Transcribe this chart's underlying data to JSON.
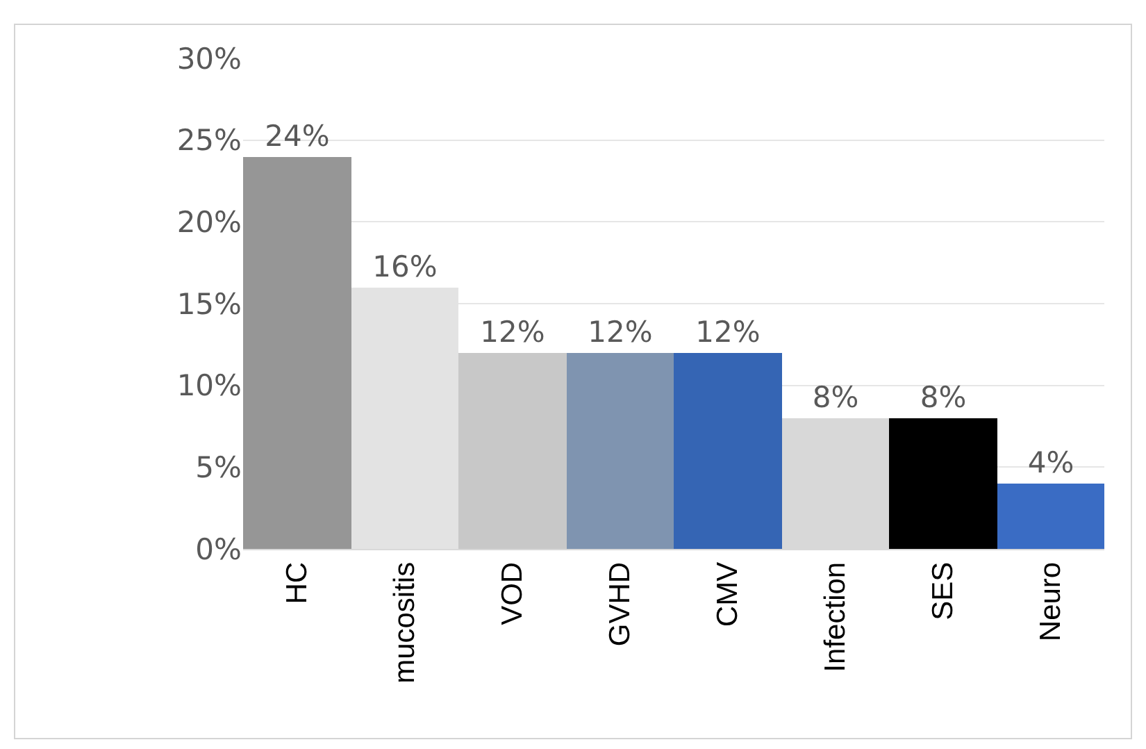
{
  "chart_data": {
    "type": "bar",
    "categories": [
      "HC",
      "mucositis",
      "VOD",
      "GVHD",
      "CMV",
      "Infection",
      "SES",
      "Neuro"
    ],
    "values": [
      24,
      16,
      12,
      12,
      12,
      8,
      8,
      4
    ],
    "colors": [
      "#969696",
      "#e3e3e3",
      "#c8c8c8",
      "#7f94b0",
      "#3565b4",
      "#d8d8d8",
      "#000000",
      "#3a6cc4"
    ],
    "value_labels": [
      "24%",
      "16%",
      "12%",
      "12%",
      "12%",
      "8%",
      "8%",
      "4%"
    ],
    "ylim": [
      0,
      30
    ],
    "yticks": [
      {
        "value": 0,
        "label": "0%"
      },
      {
        "value": 5,
        "label": "5%"
      },
      {
        "value": 10,
        "label": "10%"
      },
      {
        "value": 15,
        "label": "15%"
      },
      {
        "value": 20,
        "label": "20%"
      },
      {
        "value": 25,
        "label": "25%"
      },
      {
        "value": 30,
        "label": "30%"
      }
    ],
    "grid": "y"
  }
}
